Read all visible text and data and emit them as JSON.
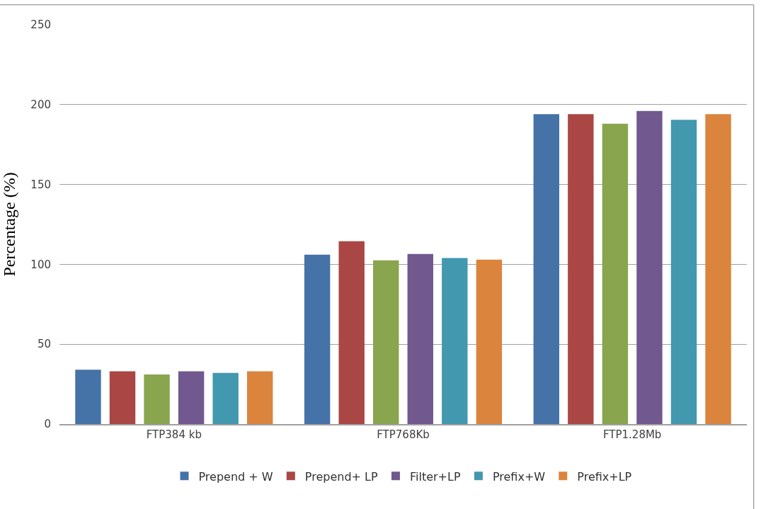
{
  "chart_data": {
    "type": "bar",
    "ylabel": "Percentage (%)",
    "categories": [
      "FTP384 kb",
      "FTP768Kb",
      "FTP1.28Mb"
    ],
    "series": [
      {
        "name": "Prepend + W",
        "color": "#4572a7",
        "values": [
          34,
          106,
          194
        ]
      },
      {
        "name": "Prepend+ LP",
        "color": "#aa4643",
        "values": [
          33,
          114.5,
          194
        ]
      },
      {
        "color": "#89a54e",
        "values": [
          31,
          102.5,
          188
        ]
      },
      {
        "name": "Filter+LP",
        "color": "#71588f",
        "values": [
          33,
          106.5,
          196
        ]
      },
      {
        "name": "Prefix+W",
        "color": "#4198af",
        "values": [
          32,
          104,
          190.5
        ]
      },
      {
        "name": "Prefix+LP",
        "color": "#db843d",
        "values": [
          33,
          103,
          194
        ]
      }
    ],
    "ylim": [
      0,
      250
    ],
    "yticks": [
      0,
      50,
      100,
      150,
      200,
      250
    ],
    "grid": "y",
    "legend": "bottom"
  }
}
